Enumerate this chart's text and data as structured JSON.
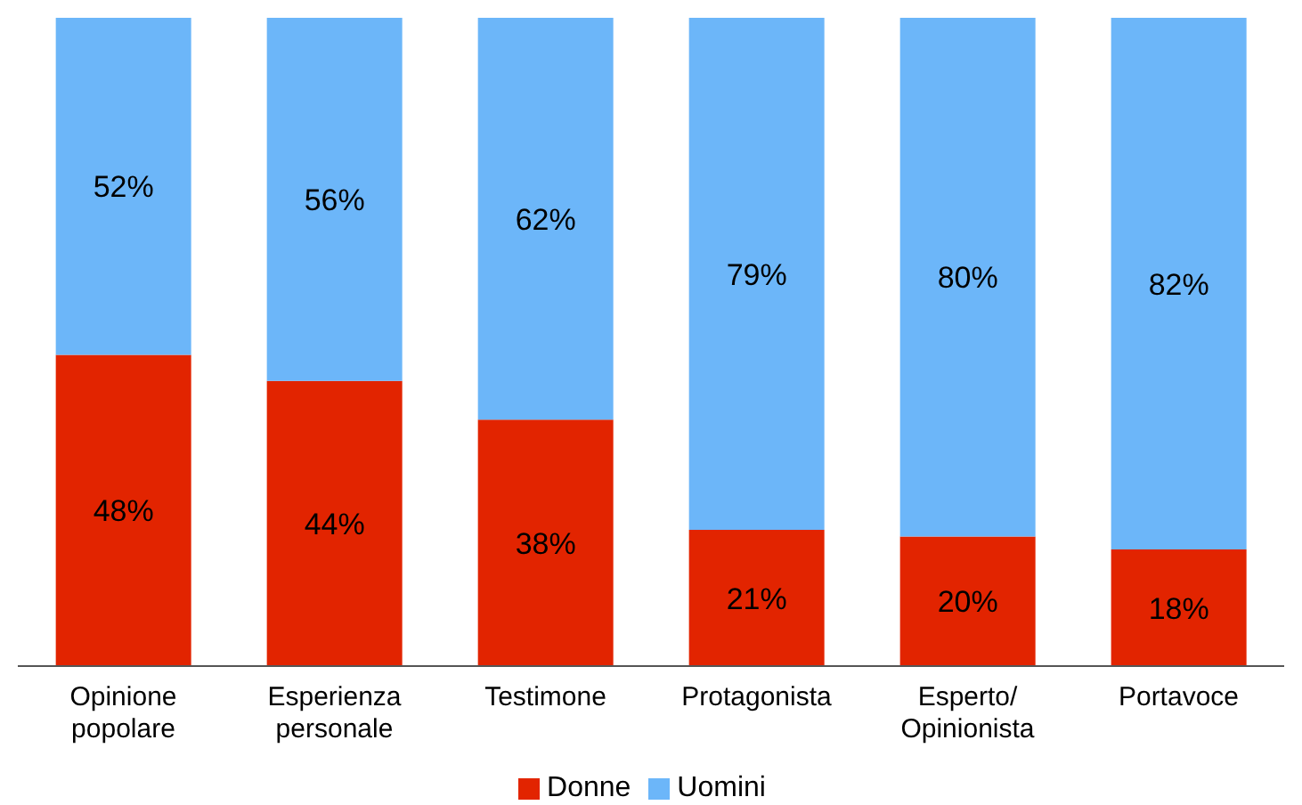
{
  "chart_data": {
    "type": "bar",
    "stacked": true,
    "categories": [
      "Opinione\npopolare",
      "Esperienza\npersonale",
      "Testimone",
      "Protagonista",
      "Esperto/\nOpinionista",
      "Portavoce"
    ],
    "series": [
      {
        "name": "Donne",
        "color": "#e22400",
        "values": [
          48,
          44,
          38,
          21,
          20,
          18
        ],
        "value_labels": [
          "48%",
          "44%",
          "38%",
          "21%",
          "20%",
          "18%"
        ]
      },
      {
        "name": "Uomini",
        "color": "#6cb6f9",
        "values": [
          52,
          56,
          62,
          79,
          80,
          82
        ],
        "value_labels": [
          "52%",
          "56%",
          "62%",
          "79%",
          "80%",
          "82%"
        ]
      }
    ],
    "ylim": [
      0,
      100
    ],
    "legend": "bottom",
    "grid": false
  }
}
